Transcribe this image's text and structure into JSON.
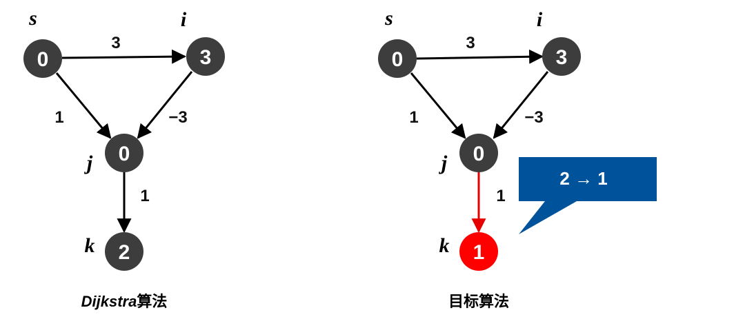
{
  "colors": {
    "node": "#3d3d3d",
    "node_highlight": "#ff0000",
    "edge": "#000000",
    "edge_highlight": "#e60000",
    "callout": "#00539b"
  },
  "left": {
    "caption_italic": "Dijkstra",
    "caption_rest": "算法",
    "nodes": {
      "s": {
        "name": "s",
        "value": "0"
      },
      "i": {
        "name": "i",
        "value": "3"
      },
      "j": {
        "name": "j",
        "value": "0"
      },
      "k": {
        "name": "k",
        "value": "2"
      }
    },
    "edges": {
      "s_i": "3",
      "s_j": "1",
      "i_j": "−3",
      "j_k": "1"
    }
  },
  "right": {
    "caption": "目标算法",
    "nodes": {
      "s": {
        "name": "s",
        "value": "0"
      },
      "i": {
        "name": "i",
        "value": "3"
      },
      "j": {
        "name": "j",
        "value": "0"
      },
      "k": {
        "name": "k",
        "value": "1"
      }
    },
    "edges": {
      "s_i": "3",
      "s_j": "1",
      "i_j": "−3",
      "j_k": "1"
    },
    "callout": "2 → 1"
  }
}
